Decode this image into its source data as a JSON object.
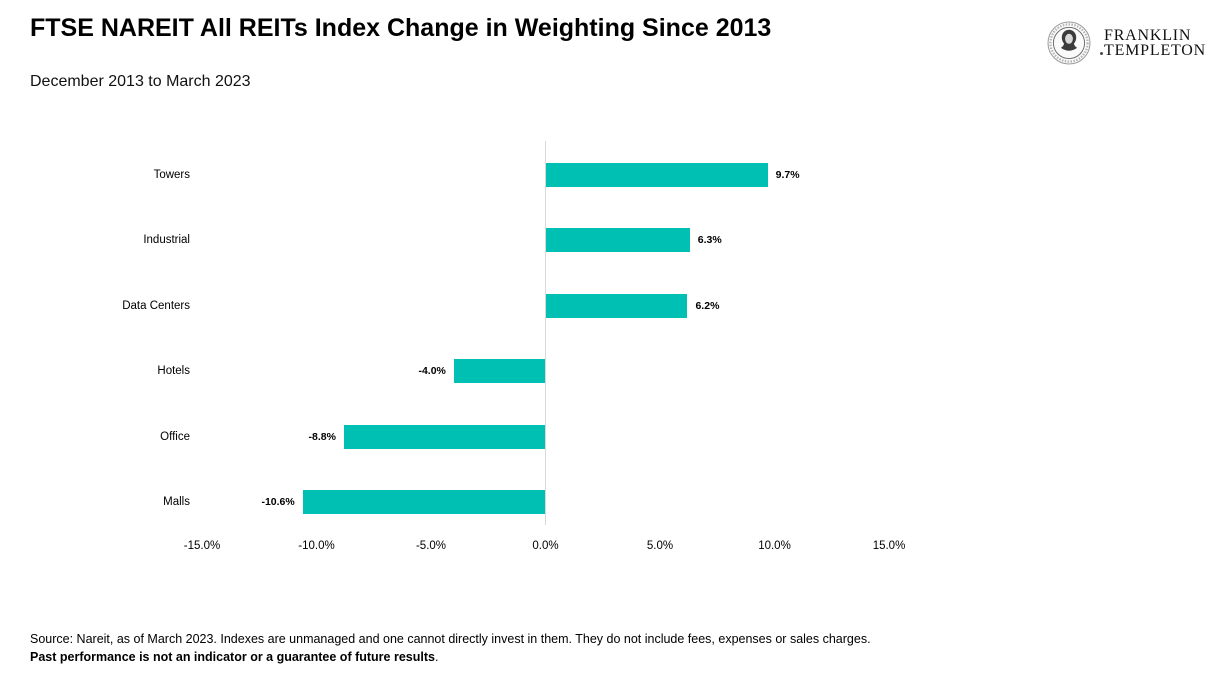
{
  "header": {
    "title": "FTSE NAREIT All REITs Index Change in Weighting Since 2013",
    "subtitle": "December 2013 to March 2023"
  },
  "logo": {
    "line1": "FRANKLIN",
    "line2": "TEMPLETON",
    "medallion_icon": "ben-franklin-medallion"
  },
  "chart_data": {
    "type": "bar",
    "orientation": "horizontal",
    "title": "FTSE NAREIT All REITs Index Change in Weighting Since 2013",
    "subtitle": "December 2013 to March 2023",
    "categories": [
      "Towers",
      "Industrial",
      "Data Centers",
      "Hotels",
      "Office",
      "Malls"
    ],
    "values": [
      9.7,
      6.3,
      6.2,
      -4.0,
      -8.8,
      -10.6
    ],
    "value_labels": [
      "9.7%",
      "6.3%",
      "6.2%",
      "-4.0%",
      "-8.8%",
      "-10.6%"
    ],
    "x_ticks": [
      -15,
      -10,
      -5,
      0,
      5,
      10,
      15
    ],
    "x_tick_labels": [
      "-15.0%",
      "-10.0%",
      "-5.0%",
      "0.0%",
      "5.0%",
      "10.0%",
      "15.0%"
    ],
    "xlim": [
      -15,
      15
    ],
    "xlabel": "",
    "ylabel": "",
    "grid": false,
    "legend": "none",
    "bar_color": "#00BFB3",
    "axis_line_color": "#D9D9D9"
  },
  "footer": {
    "source_line": "Source: Nareit, as of March 2023. Indexes are unmanaged and one cannot directly invest in them. They do not include fees, expenses or sales charges.",
    "disclaimer_bold": "Past performance is not an indicator or a guarantee of future results",
    "disclaimer_suffix": "."
  }
}
